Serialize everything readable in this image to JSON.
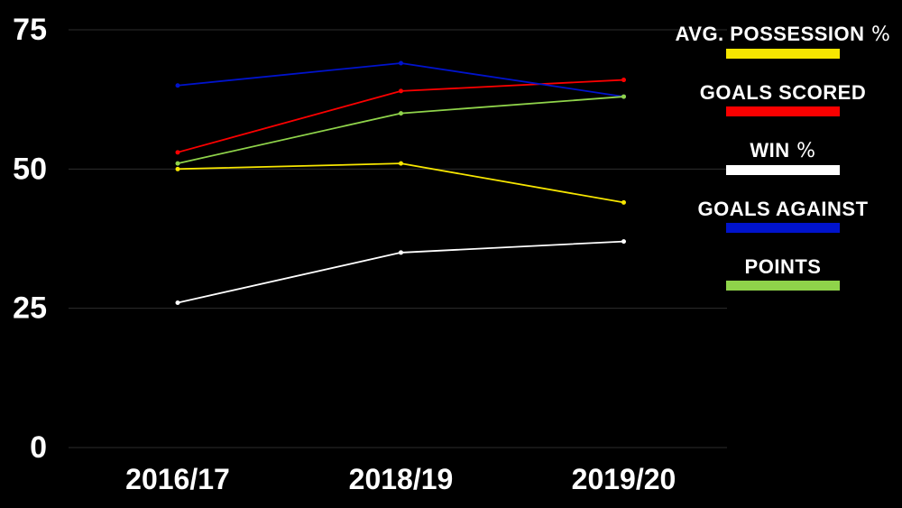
{
  "background": "#000000",
  "chart_data": {
    "type": "line",
    "title": "",
    "categories": [
      "2016/17",
      "2018/19",
      "2019/20"
    ],
    "series": [
      {
        "name": "AVG. POSSESSION %",
        "color": "#F7E600",
        "values": [
          50,
          51,
          44
        ]
      },
      {
        "name": "GOALS SCORED",
        "color": "#FA0000",
        "values": [
          53,
          64,
          66
        ]
      },
      {
        "name": "WIN %",
        "color": "#FFFFFF",
        "values": [
          26,
          35,
          37
        ]
      },
      {
        "name": "GOALS AGAINST",
        "color": "#0013CC",
        "values": [
          65,
          69,
          63
        ]
      },
      {
        "name": "POINTS",
        "color": "#8FD34A",
        "values": [
          51,
          60,
          63
        ]
      }
    ],
    "z_order": [
      0,
      2,
      1,
      3,
      4
    ],
    "y_ticks": [
      0,
      25,
      50,
      75
    ],
    "ylim": [
      0,
      75
    ],
    "grid": true,
    "grid_color": "#2d2d2d",
    "axis_text_color": "#ffffff",
    "legend_position": "right",
    "markers": true
  },
  "legend": {
    "items": [
      {
        "label": "AVG. POSSESSION %",
        "color": "#F7E600"
      },
      {
        "label": "GOALS SCORED",
        "color": "#FA0000"
      },
      {
        "label": "WIN %",
        "color": "#FFFFFF"
      },
      {
        "label": "GOALS AGAINST",
        "color": "#0013CC"
      },
      {
        "label": "POINTS",
        "color": "#8FD34A"
      }
    ]
  }
}
